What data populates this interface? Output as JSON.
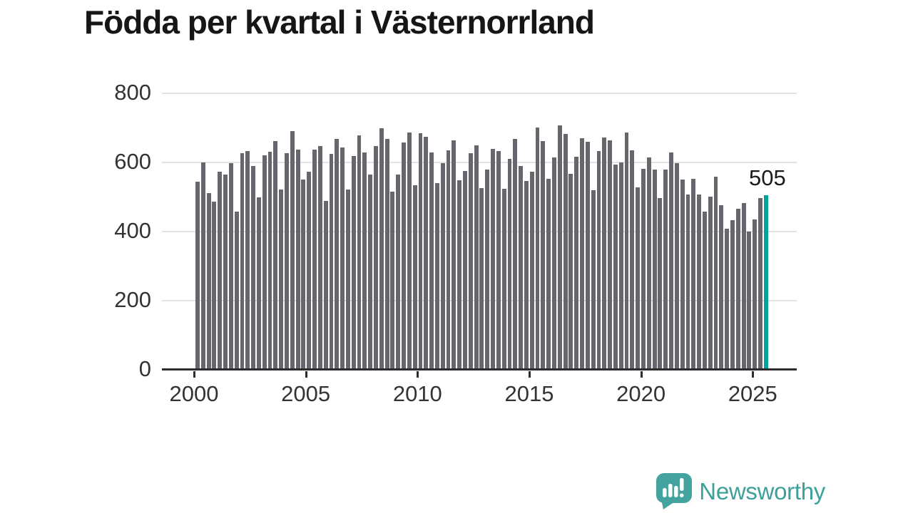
{
  "title": "Födda per kvartal i Västernorrland",
  "branding": {
    "name": "Newsworthy",
    "icon": "newsworthy-speech-bubble-chart-icon",
    "icon_color": "#44a39e",
    "text_color": "#3da09a"
  },
  "colors": {
    "bar": "#67666c",
    "highlight": "#00a49b",
    "gridline": "#e3e3e3",
    "axis": "#2d2d2d",
    "tick_label": "#333333",
    "title": "#161616"
  },
  "chart_data": {
    "type": "bar",
    "title": "Födda per kvartal i Västernorrland",
    "xlabel": "",
    "ylabel": "",
    "ylim": [
      0,
      800
    ],
    "y_tick_values": [
      0,
      200,
      400,
      600,
      800
    ],
    "y_tick_labels": [
      "0",
      "200",
      "400",
      "600",
      "800"
    ],
    "x_tick_labels": [
      "2000",
      "2005",
      "2010",
      "2015",
      "2020",
      "2025"
    ],
    "grid": "horizontal",
    "legend": "none",
    "highlight_index": 102,
    "highlight_value_label": "505",
    "categories": [
      "2000 Q1",
      "2000 Q2",
      "2000 Q3",
      "2000 Q4",
      "2001 Q1",
      "2001 Q2",
      "2001 Q3",
      "2001 Q4",
      "2002 Q1",
      "2002 Q2",
      "2002 Q3",
      "2002 Q4",
      "2003 Q1",
      "2003 Q2",
      "2003 Q3",
      "2003 Q4",
      "2004 Q1",
      "2004 Q2",
      "2004 Q3",
      "2004 Q4",
      "2005 Q1",
      "2005 Q2",
      "2005 Q3",
      "2005 Q4",
      "2006 Q1",
      "2006 Q2",
      "2006 Q3",
      "2006 Q4",
      "2007 Q1",
      "2007 Q2",
      "2007 Q3",
      "2007 Q4",
      "2008 Q1",
      "2008 Q2",
      "2008 Q3",
      "2008 Q4",
      "2009 Q1",
      "2009 Q2",
      "2009 Q3",
      "2009 Q4",
      "2010 Q1",
      "2010 Q2",
      "2010 Q3",
      "2010 Q4",
      "2011 Q1",
      "2011 Q2",
      "2011 Q3",
      "2011 Q4",
      "2012 Q1",
      "2012 Q2",
      "2012 Q3",
      "2012 Q4",
      "2013 Q1",
      "2013 Q2",
      "2013 Q3",
      "2013 Q4",
      "2014 Q1",
      "2014 Q2",
      "2014 Q3",
      "2014 Q4",
      "2015 Q1",
      "2015 Q2",
      "2015 Q3",
      "2015 Q4",
      "2016 Q1",
      "2016 Q2",
      "2016 Q3",
      "2016 Q4",
      "2017 Q1",
      "2017 Q2",
      "2017 Q3",
      "2017 Q4",
      "2018 Q1",
      "2018 Q2",
      "2018 Q3",
      "2018 Q4",
      "2019 Q1",
      "2019 Q2",
      "2019 Q3",
      "2019 Q4",
      "2020 Q1",
      "2020 Q2",
      "2020 Q3",
      "2020 Q4",
      "2021 Q1",
      "2021 Q2",
      "2021 Q3",
      "2021 Q4",
      "2022 Q1",
      "2022 Q2",
      "2022 Q3",
      "2022 Q4",
      "2023 Q1",
      "2023 Q2",
      "2023 Q3",
      "2023 Q4",
      "2024 Q1",
      "2024 Q2",
      "2024 Q3",
      "2024 Q4",
      "2025 Q1",
      "2025 Q2",
      "2025 Q3"
    ],
    "values": [
      544,
      601,
      511,
      486,
      574,
      566,
      599,
      458,
      627,
      632,
      590,
      500,
      620,
      630,
      661,
      522,
      626,
      690,
      637,
      551,
      574,
      637,
      647,
      489,
      625,
      668,
      643,
      522,
      618,
      678,
      628,
      564,
      648,
      700,
      669,
      515,
      565,
      658,
      686,
      534,
      684,
      675,
      629,
      540,
      599,
      635,
      663,
      548,
      575,
      627,
      649,
      526,
      579,
      640,
      634,
      524,
      611,
      669,
      589,
      546,
      574,
      701,
      661,
      552,
      615,
      707,
      682,
      567,
      616,
      671,
      660,
      520,
      634,
      673,
      663,
      594,
      601,
      687,
      635,
      527,
      581,
      614,
      579,
      496,
      580,
      628,
      599,
      551,
      508,
      552,
      508,
      458,
      501,
      558,
      477,
      409,
      432,
      465,
      482,
      401,
      436,
      496,
      505
    ]
  }
}
